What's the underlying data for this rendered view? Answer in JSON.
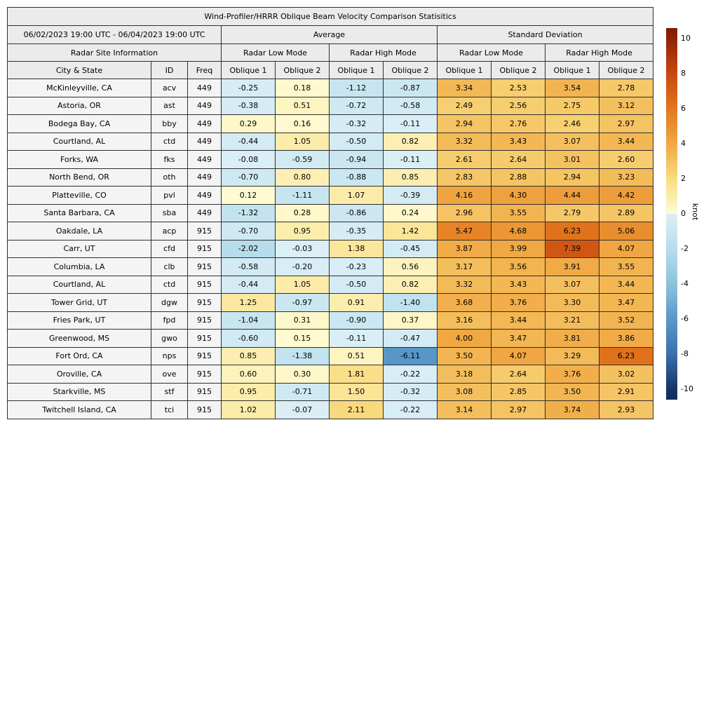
{
  "title": "Wind-Profiler/HRRR Oblique Beam Velocity Comparison Statisitics",
  "date_range": "06/02/2023 19:00 UTC - 06/04/2023 19:00 UTC",
  "header": {
    "site_info": "Radar Site Information",
    "average": "Average",
    "std_dev": "Standard Deviation",
    "low_mode": "Radar Low Mode",
    "high_mode": "Radar High Mode",
    "city_state": "City & State",
    "id": "ID",
    "freq": "Freq",
    "oblique1": "Oblique 1",
    "oblique2": "Oblique 2"
  },
  "colorbar": {
    "label": "knot",
    "ticks": [
      10,
      8,
      6,
      4,
      2,
      0,
      -2,
      -4,
      -6,
      -8,
      -10
    ],
    "vmin": -10.6,
    "vmax": 10.6
  },
  "colors": {
    "header_bg": "#ebebeb",
    "site_cell_bg": "#f4f4f4",
    "border": "#2f2f2f",
    "positive_anchors": [
      [
        0,
        "#fffcd6"
      ],
      [
        2,
        "#f9dc80"
      ],
      [
        4,
        "#f0a843"
      ],
      [
        6,
        "#e2771d"
      ],
      [
        8,
        "#c8490f"
      ],
      [
        10,
        "#8f2206"
      ]
    ],
    "negative_anchors": [
      [
        0,
        "#dceff6"
      ],
      [
        2,
        "#b6ddec"
      ],
      [
        4,
        "#8cc3dc"
      ],
      [
        6,
        "#5b98c9"
      ],
      [
        8,
        "#3a70ae"
      ],
      [
        10,
        "#143567"
      ]
    ],
    "cb_top_extreme": "#7c1d06",
    "cb_bottom_extreme": "#0f2e5c"
  },
  "chart_data": {
    "type": "heatmap",
    "unit": "knot",
    "value_range": [
      -10,
      10
    ],
    "legend_position": "right-colorbar",
    "value_columns": [
      "Average Radar Low Mode Oblique 1",
      "Average Radar Low Mode Oblique 2",
      "Average Radar High Mode Oblique 1",
      "Average Radar High Mode Oblique 2",
      "Standard Deviation Radar Low Mode Oblique 1",
      "Standard Deviation Radar Low Mode Oblique 2",
      "Standard Deviation Radar High Mode Oblique 1",
      "Standard Deviation Radar High Mode Oblique 2"
    ],
    "rows": [
      {
        "city": "McKinleyville, CA",
        "id": "acv",
        "freq": 449,
        "values": [
          -0.25,
          0.18,
          -1.12,
          -0.87,
          3.34,
          2.53,
          3.54,
          2.78
        ]
      },
      {
        "city": "Astoria, OR",
        "id": "ast",
        "freq": 449,
        "values": [
          -0.38,
          0.51,
          -0.72,
          -0.58,
          2.49,
          2.56,
          2.75,
          3.12
        ]
      },
      {
        "city": "Bodega Bay, CA",
        "id": "bby",
        "freq": 449,
        "values": [
          0.29,
          0.16,
          -0.32,
          -0.11,
          2.94,
          2.76,
          2.46,
          2.97
        ]
      },
      {
        "city": "Courtland, AL",
        "id": "ctd",
        "freq": 449,
        "values": [
          -0.44,
          1.05,
          -0.5,
          0.82,
          3.32,
          3.43,
          3.07,
          3.44
        ]
      },
      {
        "city": "Forks, WA",
        "id": "fks",
        "freq": 449,
        "values": [
          -0.08,
          -0.59,
          -0.94,
          -0.11,
          2.61,
          2.64,
          3.01,
          2.6
        ]
      },
      {
        "city": "North Bend, OR",
        "id": "oth",
        "freq": 449,
        "values": [
          -0.7,
          0.8,
          -0.88,
          0.85,
          2.83,
          2.88,
          2.94,
          3.23
        ]
      },
      {
        "city": "Platteville, CO",
        "id": "pvl",
        "freq": 449,
        "values": [
          0.12,
          -1.11,
          1.07,
          -0.39,
          4.16,
          4.3,
          4.44,
          4.42
        ]
      },
      {
        "city": "Santa Barbara, CA",
        "id": "sba",
        "freq": 449,
        "values": [
          -1.32,
          0.28,
          -0.86,
          0.24,
          2.96,
          3.55,
          2.79,
          2.89
        ]
      },
      {
        "city": "Oakdale, LA",
        "id": "acp",
        "freq": 915,
        "values": [
          -0.7,
          0.95,
          -0.35,
          1.42,
          5.47,
          4.68,
          6.23,
          5.06
        ]
      },
      {
        "city": "Carr, UT",
        "id": "cfd",
        "freq": 915,
        "values": [
          -2.02,
          -0.03,
          1.38,
          -0.45,
          3.87,
          3.99,
          7.39,
          4.07
        ]
      },
      {
        "city": "Columbia, LA",
        "id": "clb",
        "freq": 915,
        "values": [
          -0.58,
          -0.2,
          -0.23,
          0.56,
          3.17,
          3.56,
          3.91,
          3.55
        ]
      },
      {
        "city": "Courtland, AL",
        "id": "ctd",
        "freq": 915,
        "values": [
          -0.44,
          1.05,
          -0.5,
          0.82,
          3.32,
          3.43,
          3.07,
          3.44
        ]
      },
      {
        "city": "Tower Grid, UT",
        "id": "dgw",
        "freq": 915,
        "values": [
          1.25,
          -0.97,
          0.91,
          -1.4,
          3.68,
          3.76,
          3.3,
          3.47
        ]
      },
      {
        "city": "Fries Park, UT",
        "id": "fpd",
        "freq": 915,
        "values": [
          -1.04,
          0.31,
          -0.9,
          0.37,
          3.16,
          3.44,
          3.21,
          3.52
        ]
      },
      {
        "city": "Greenwood, MS",
        "id": "gwo",
        "freq": 915,
        "values": [
          -0.6,
          0.15,
          -0.11,
          -0.47,
          4.0,
          3.47,
          3.81,
          3.86
        ]
      },
      {
        "city": "Fort Ord, CA",
        "id": "nps",
        "freq": 915,
        "values": [
          0.85,
          -1.38,
          0.51,
          -6.11,
          3.5,
          4.07,
          3.29,
          6.23
        ]
      },
      {
        "city": "Oroville, CA",
        "id": "ove",
        "freq": 915,
        "values": [
          0.6,
          0.3,
          1.81,
          -0.22,
          3.18,
          2.64,
          3.76,
          3.02
        ]
      },
      {
        "city": "Starkville, MS",
        "id": "stf",
        "freq": 915,
        "values": [
          0.95,
          -0.71,
          1.5,
          -0.32,
          3.08,
          2.85,
          3.5,
          2.91
        ]
      },
      {
        "city": "Twitchell Island, CA",
        "id": "tci",
        "freq": 915,
        "values": [
          1.02,
          -0.07,
          2.11,
          -0.22,
          3.14,
          2.97,
          3.74,
          2.93
        ]
      }
    ]
  }
}
